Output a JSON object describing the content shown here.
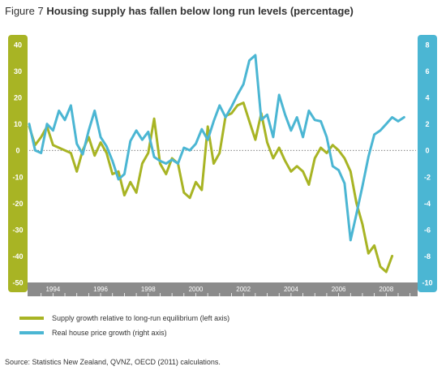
{
  "figure": {
    "label": "Figure 7",
    "title": "Housing supply has fallen below long run levels (percentage)",
    "source": "Source: Statistics New Zealand, QVNZ, OECD (2011) calculations."
  },
  "colors": {
    "supply": "#a8b424",
    "price": "#4bb6d3",
    "left_axis": "#a8b424",
    "right_axis": "#4bb6d3",
    "x_band": "#8b8b8b"
  },
  "chart_data": {
    "type": "line",
    "title": "Housing supply has fallen below long run levels (percentage)",
    "x_ticks": [
      "1994",
      "1996",
      "1998",
      "2000",
      "2002",
      "2004",
      "2006",
      "2008"
    ],
    "x_range": [
      1993.5,
      2009.75
    ],
    "y_left": {
      "range": [
        -50,
        40
      ],
      "ticks": [
        "40",
        "30",
        "20",
        "10",
        "0",
        "-10",
        "-20",
        "-30",
        "-40",
        "-50"
      ]
    },
    "y_right": {
      "range": [
        -10,
        8
      ],
      "ticks": [
        "8",
        "6",
        "4",
        "2",
        "0",
        "-2",
        "-4",
        "-6",
        "-8",
        "-10"
      ]
    },
    "zero_line": "dotted",
    "legend_position": "bottom-left",
    "series": [
      {
        "name": "Supply growth relative to long-run equilibrium (left axis)",
        "axis": "left",
        "x": [
          1993.5,
          1993.75,
          1994.0,
          1994.25,
          1994.5,
          1994.75,
          1995.0,
          1995.25,
          1995.5,
          1995.75,
          1996.0,
          1996.25,
          1996.5,
          1996.75,
          1997.0,
          1997.25,
          1997.5,
          1997.75,
          1998.0,
          1998.25,
          1998.5,
          1998.75,
          1999.0,
          1999.25,
          1999.5,
          1999.75,
          2000.0,
          2000.25,
          2000.5,
          2000.75,
          2001.0,
          2001.25,
          2001.5,
          2001.75,
          2002.0,
          2002.25,
          2002.5,
          2002.75,
          2003.0,
          2003.25,
          2003.5,
          2003.75,
          2004.0,
          2004.25,
          2004.5,
          2004.75,
          2005.0,
          2005.25,
          2005.5,
          2005.75,
          2006.0,
          2006.25,
          2006.5,
          2006.75,
          2007.0,
          2007.25,
          2007.5,
          2007.75,
          2008.0,
          2008.25,
          2008.5,
          2008.75
        ],
        "values": [
          9,
          2,
          5,
          9,
          2,
          1,
          0,
          -1,
          -8,
          0,
          5,
          -2,
          3,
          -1,
          -9,
          -8,
          -17,
          -12,
          -16,
          -5,
          -1,
          12,
          -5,
          -9,
          -3,
          -5,
          -16,
          -18,
          -12,
          -15,
          9,
          -5,
          -1,
          13,
          14,
          17,
          18,
          11,
          4,
          14,
          3,
          -3,
          1,
          -4,
          -8,
          -6,
          -8,
          -13,
          -3,
          1,
          -1,
          2,
          0,
          -3,
          -8,
          -20,
          -28,
          -39,
          -36,
          -44,
          -46,
          -40
        ]
      },
      {
        "name": "Real house price growth (right axis)",
        "axis": "right",
        "x": [
          1993.5,
          1993.75,
          1994.0,
          1994.25,
          1994.5,
          1994.75,
          1995.0,
          1995.25,
          1995.5,
          1995.75,
          1996.0,
          1996.25,
          1996.5,
          1996.75,
          1997.0,
          1997.25,
          1997.5,
          1997.75,
          1998.0,
          1998.25,
          1998.5,
          1998.75,
          1999.0,
          1999.25,
          1999.5,
          1999.75,
          2000.0,
          2000.25,
          2000.5,
          2000.75,
          2001.0,
          2001.25,
          2001.5,
          2001.75,
          2002.0,
          2002.25,
          2002.5,
          2002.75,
          2003.0,
          2003.25,
          2003.5,
          2003.75,
          2004.0,
          2004.25,
          2004.5,
          2004.75,
          2005.0,
          2005.25,
          2005.5,
          2005.75,
          2006.0,
          2006.25,
          2006.5,
          2006.75,
          2007.0,
          2007.25,
          2007.5,
          2007.75,
          2008.0,
          2008.25,
          2008.5,
          2008.75,
          2009.0,
          2009.25
        ],
        "values": [
          2,
          0,
          -0.2,
          2,
          1.5,
          3,
          2.3,
          3.4,
          0.5,
          -0.3,
          1.5,
          3,
          1,
          0.3,
          -0.8,
          -2.2,
          -1.8,
          0.7,
          1.5,
          0.8,
          1.4,
          -0.5,
          -0.8,
          -1,
          -0.7,
          -1,
          0.2,
          0,
          0.5,
          1.6,
          0.8,
          2.2,
          3.4,
          2.5,
          3.3,
          4.2,
          5,
          6.8,
          7.2,
          2.3,
          2.7,
          1,
          4.2,
          2.7,
          1.5,
          2.5,
          1,
          3,
          2.3,
          2.2,
          1,
          -1.2,
          -1.5,
          -2.5,
          -6.8,
          -4.8,
          -2.7,
          -0.5,
          1.2,
          1.5,
          2,
          2.5,
          2.2,
          2.5
        ]
      }
    ]
  }
}
